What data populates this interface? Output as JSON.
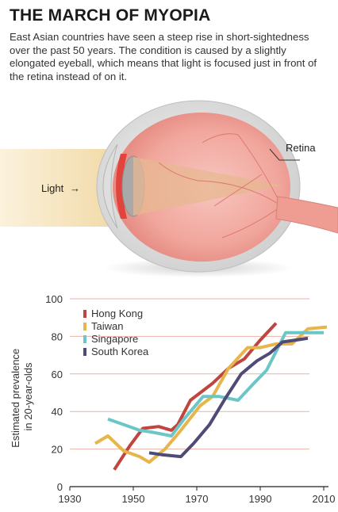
{
  "header": {
    "title": "THE MARCH OF MYOPIA",
    "subtitle": "East Asian countries have seen a steep rise in short-sightedness over the past 50 years. The condition is caused by a slightly elongated eyeball, which means that light is focused just in front of the retina instead of on it."
  },
  "illustration": {
    "retina_label": "Retina",
    "light_label": "Light"
  },
  "colors": {
    "Hong Kong": "#c0453f",
    "Taiwan": "#e8b54a",
    "Singapore": "#6cc6c6",
    "South Korea": "#4f4a76",
    "gridline": "#e9b2a8"
  },
  "chart_data": {
    "type": "line",
    "title": "",
    "xlabel": "",
    "ylabel": "Estimated prevalence in 20-year-olds",
    "xlim": [
      1930,
      2013
    ],
    "ylim": [
      0,
      100
    ],
    "xticks": [
      1930,
      1950,
      1970,
      1990,
      2010
    ],
    "yticks": [
      0,
      20,
      40,
      60,
      80,
      100
    ],
    "grid": true,
    "legend": "top-left",
    "series": [
      {
        "name": "Hong Kong",
        "x": [
          1944,
          1949,
          1953,
          1958,
          1962,
          1964,
          1968,
          1975,
          1980,
          1985,
          1990,
          1995
        ],
        "y": [
          9,
          22,
          31,
          32,
          30,
          33,
          46,
          55,
          63,
          68,
          78,
          87
        ]
      },
      {
        "name": "Taiwan",
        "x": [
          1938,
          1942,
          1947,
          1952,
          1955,
          1960,
          1965,
          1971,
          1975,
          1980,
          1986,
          1990,
          1995,
          2000,
          2005,
          2011
        ],
        "y": [
          23,
          27,
          19,
          16,
          13,
          20,
          30,
          43,
          48,
          63,
          74,
          74,
          76,
          76,
          84,
          85
        ]
      },
      {
        "name": "Singapore",
        "x": [
          1942,
          1947,
          1952,
          1956,
          1962,
          1966,
          1972,
          1977,
          1983,
          1988,
          1992,
          1998,
          2003,
          2010
        ],
        "y": [
          36,
          33,
          30,
          29,
          27,
          36,
          48,
          48,
          46,
          55,
          62,
          82,
          82,
          82
        ]
      },
      {
        "name": "South Korea",
        "x": [
          1955,
          1959,
          1965,
          1969,
          1974,
          1979,
          1984,
          1989,
          1993,
          1997,
          2005
        ],
        "y": [
          18,
          17,
          16,
          23,
          33,
          47,
          60,
          67,
          71,
          77,
          79
        ]
      }
    ]
  }
}
